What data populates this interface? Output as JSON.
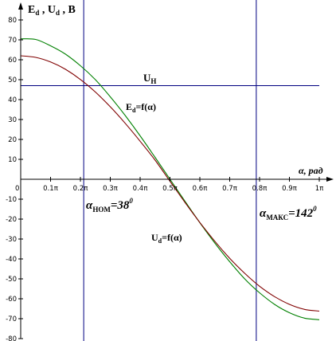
{
  "chart_data": {
    "type": "line",
    "ylabel": "E",
    "ylabel_sub1": "d",
    "ylabel_mid": " , U",
    "ylabel_sub2": "d",
    "ylabel_unit": " , В",
    "xlabel": "α, рад",
    "origin_label": "0",
    "xlim": [
      0,
      1
    ],
    "ylim": [
      -80,
      80
    ],
    "x_ticks": [
      0.1,
      0.2,
      0.3,
      0.4,
      0.5,
      0.6,
      0.7,
      0.8,
      0.9,
      1.0
    ],
    "x_tick_labels": [
      "0.1π",
      "0.2π",
      "0.3π",
      "0.4π",
      "0.5π",
      "0.6π",
      "0.7π",
      "0.8π",
      "0.9π",
      "1π"
    ],
    "y_ticks": [
      80,
      70,
      60,
      50,
      40,
      30,
      20,
      10,
      -10,
      -20,
      -30,
      -40,
      -50,
      -60,
      -70,
      -80
    ],
    "series": [
      {
        "name": "Ed=f(α)",
        "label_main": "E",
        "label_sub": "d",
        "label_rest": "=f(α)",
        "color": "#008000",
        "x": [
          0,
          0.05,
          0.1,
          0.15,
          0.2,
          0.25,
          0.3,
          0.35,
          0.4,
          0.45,
          0.5,
          0.55,
          0.6,
          0.65,
          0.7,
          0.75,
          0.8,
          0.85,
          0.9,
          0.95,
          1.0
        ],
        "y": [
          70.5,
          70.2,
          67.0,
          62.8,
          57.0,
          50.0,
          41.4,
          32.0,
          21.8,
          11.0,
          0,
          -11.0,
          -21.8,
          -32.0,
          -41.4,
          -50.0,
          -57.0,
          -62.8,
          -67.0,
          -69.7,
          -70.5
        ]
      },
      {
        "name": "Ud=f(α)",
        "label_main": "U",
        "label_sub": "d",
        "label_rest": "=f(α)",
        "color": "#800000",
        "x": [
          0,
          0.05,
          0.1,
          0.15,
          0.2,
          0.25,
          0.3,
          0.35,
          0.4,
          0.45,
          0.5,
          0.55,
          0.6,
          0.65,
          0.7,
          0.75,
          0.8,
          0.85,
          0.9,
          0.95,
          1.0
        ],
        "y": [
          62.0,
          61.2,
          58.9,
          55.2,
          50.1,
          43.8,
          36.4,
          28.1,
          19.1,
          9.6,
          -1.0,
          -11.6,
          -21.7,
          -31.1,
          -39.7,
          -47.2,
          -53.7,
          -58.9,
          -62.8,
          -65.3,
          -66.2
        ]
      }
    ],
    "hline": {
      "y": 47,
      "label_main": "U",
      "label_sub": "Н",
      "color": "#000080"
    },
    "vlines": [
      {
        "x": 0.211,
        "label_main": "α",
        "label_sub": "НОМ",
        "label_rest": "=38",
        "label_sup": "0",
        "color": "#000080"
      },
      {
        "x": 0.789,
        "label_main": "α",
        "label_sub": "МАКС",
        "label_rest": "=142",
        "label_sup": "0",
        "color": "#000080"
      }
    ]
  }
}
